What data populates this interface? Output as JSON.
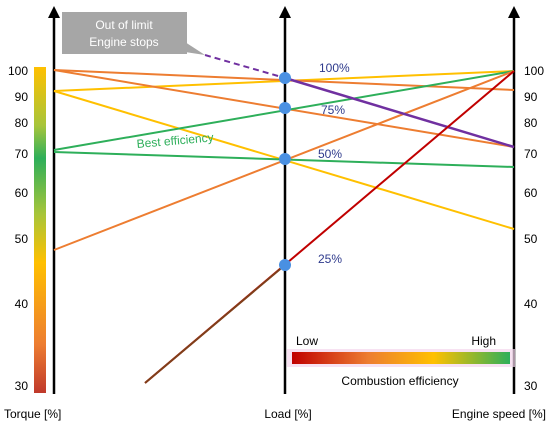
{
  "callout": {
    "line1": "Out of limit",
    "line2": "Engine stops"
  },
  "axes": {
    "torque_label": "Torque [%]",
    "load_label": "Load [%]",
    "speed_label": "Engine speed [%]"
  },
  "torque_ticks": [
    "100",
    "90",
    "80",
    "70",
    "60",
    "50",
    "40",
    "30"
  ],
  "speed_ticks": [
    "100",
    "90",
    "80",
    "70",
    "60",
    "50",
    "40",
    "30"
  ],
  "load_points": [
    "100%",
    "75%",
    "50%",
    "25%"
  ],
  "best_efficiency_label": "Best efficiency",
  "legend": {
    "low": "Low",
    "high": "High",
    "title": "Combustion efficiency"
  },
  "colors": {
    "red": "#c0392b",
    "orange": "#ed7d31",
    "yellow": "#ffc000",
    "green": "#2eaf5a",
    "purple": "#7030a0",
    "point": "#4a90e2",
    "callout_fill": "#a6a6a6",
    "pct_text": "#2e3a8c"
  }
}
